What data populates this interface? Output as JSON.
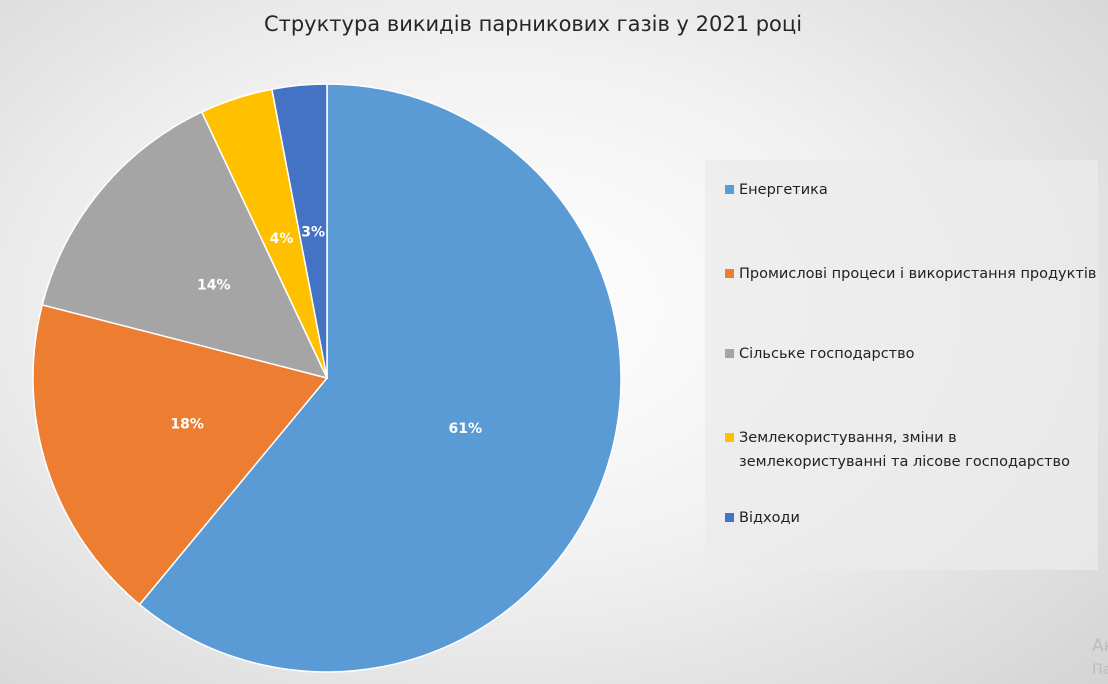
{
  "chart_data": {
    "type": "pie",
    "title": "Структура викидів парникових газів у 2021 році",
    "categories": [
      "Енергетика",
      "Промислові процеси і використання продуктів",
      "Сільське господарство",
      "Землекористування, зміни в землекористуванні та лісове господарство",
      "Відходи"
    ],
    "values": [
      61,
      18,
      14,
      4,
      3
    ],
    "data_labels": [
      "61%",
      "18%",
      "14%",
      "4%",
      "3%"
    ],
    "colors": [
      "#5b9bd5",
      "#ed7d31",
      "#a5a5a5",
      "#ffc000",
      "#4472c4"
    ],
    "legend_position": "right"
  },
  "watermark": {
    "line1": "Ак",
    "line2": "Па"
  }
}
